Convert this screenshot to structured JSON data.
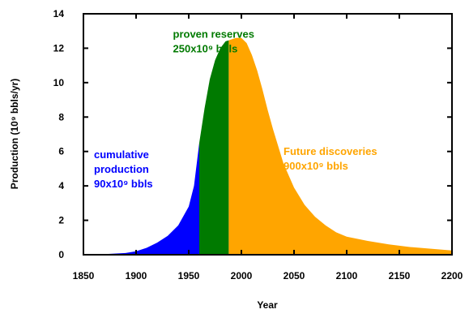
{
  "chart_data": {
    "type": "area",
    "xlabel": "Year",
    "ylabel": "Production (10⁹ bbls/yr)",
    "xlim": [
      1850,
      2200
    ],
    "ylim": [
      0,
      14
    ],
    "xticks": [
      1850,
      1900,
      1950,
      2000,
      2050,
      2100,
      2150,
      2200
    ],
    "yticks": [
      0,
      2,
      4,
      6,
      8,
      10,
      12,
      14
    ],
    "grid": false,
    "curve": {
      "x": [
        1850,
        1870,
        1890,
        1900,
        1910,
        1920,
        1930,
        1940,
        1950,
        1955,
        1960,
        1965,
        1970,
        1975,
        1980,
        1985,
        1990,
        1995,
        2000,
        2005,
        2010,
        2015,
        2020,
        2025,
        2030,
        2040,
        2050,
        2060,
        2070,
        2080,
        2090,
        2100,
        2120,
        2140,
        2160,
        2180,
        2200
      ],
      "y": [
        0.02,
        0.04,
        0.1,
        0.2,
        0.4,
        0.7,
        1.1,
        1.7,
        2.8,
        4.0,
        6.5,
        8.5,
        10.2,
        11.3,
        12.0,
        12.4,
        12.5,
        12.6,
        12.6,
        12.3,
        11.6,
        10.7,
        9.6,
        8.4,
        7.3,
        5.3,
        3.9,
        2.9,
        2.2,
        1.7,
        1.3,
        1.05,
        0.8,
        0.6,
        0.45,
        0.35,
        0.25
      ]
    },
    "regions": [
      {
        "name": "cumulative production",
        "x_start": 1850,
        "x_end": 1960,
        "color": "#0000ff"
      },
      {
        "name": "proven reserves",
        "x_start": 1960,
        "x_end": 1988,
        "color": "#007a00"
      },
      {
        "name": "Future discoveries",
        "x_start": 1988,
        "x_end": 2200,
        "color": "#ffa500"
      }
    ],
    "annotations": [
      {
        "lines": [
          "cumulative",
          "production",
          "90x10⁹ bbls"
        ],
        "color": "#0000ff",
        "at": [
          1860,
          5.6
        ]
      },
      {
        "lines": [
          "proven reserves",
          "250x10⁹ bbls"
        ],
        "color": "#007a00",
        "at": [
          1935,
          12.6
        ]
      },
      {
        "lines": [
          "Future discoveries",
          "900x10⁹ bbls"
        ],
        "color": "#ffa500",
        "at": [
          2040,
          5.8
        ]
      }
    ]
  }
}
